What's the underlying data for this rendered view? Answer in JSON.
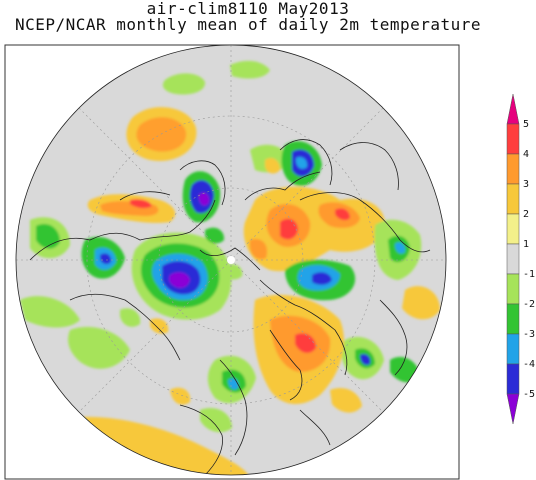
{
  "title_line1": "air-clim8110 May2013",
  "title_line2": "NCEP/NCAR monthly mean of daily 2m temperature",
  "colorbar": {
    "labels": [
      "5",
      "4",
      "3",
      "2",
      "1",
      "-1",
      "-2",
      "-3",
      "-4",
      "-5"
    ],
    "colors": [
      "#e6007e",
      "#ff3e3e",
      "#ff9a2e",
      "#f7c83a",
      "#f3f08a",
      "#d9d9d9",
      "#a6e35a",
      "#33c433",
      "#21a3e8",
      "#2b2bd6",
      "#8b00d6"
    ]
  }
}
